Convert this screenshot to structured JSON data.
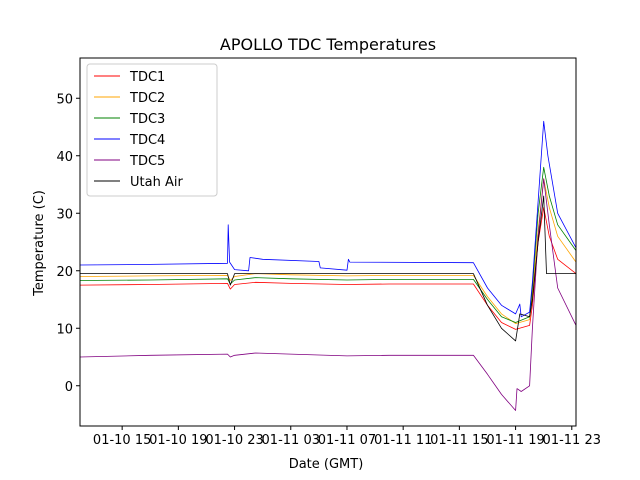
{
  "chart_data": {
    "type": "line",
    "title": "APOLLO TDC Temperatures",
    "xlabel": "Date (GMT)",
    "ylabel": "Temperature (C)",
    "x_unit": "hours since 01-10 12:00 GMT",
    "xlim": [
      0,
      35.3
    ],
    "ylim": [
      -7,
      57
    ],
    "x_ticks": [
      {
        "value": 3,
        "label": "01-10 15"
      },
      {
        "value": 7,
        "label": "01-10 19"
      },
      {
        "value": 11,
        "label": "01-10 23"
      },
      {
        "value": 15,
        "label": "01-11 03"
      },
      {
        "value": 19,
        "label": "01-11 07"
      },
      {
        "value": 23,
        "label": "01-11 11"
      },
      {
        "value": 27,
        "label": "01-11 15"
      },
      {
        "value": 31,
        "label": "01-11 19"
      },
      {
        "value": 35,
        "label": "01-11 23"
      }
    ],
    "y_ticks": [
      {
        "value": 0,
        "label": "0"
      },
      {
        "value": 10,
        "label": "10"
      },
      {
        "value": 20,
        "label": "20"
      },
      {
        "value": 30,
        "label": "30"
      },
      {
        "value": 40,
        "label": "40"
      },
      {
        "value": 50,
        "label": "50"
      }
    ],
    "grid": false,
    "legend_position": "top-left",
    "series": [
      {
        "name": "TDC1",
        "color": "#ff0000",
        "points": [
          [
            0,
            17.5
          ],
          [
            5,
            17.6
          ],
          [
            10.5,
            17.8
          ],
          [
            10.7,
            16.8
          ],
          [
            11,
            17.6
          ],
          [
            12.5,
            18
          ],
          [
            15,
            17.8
          ],
          [
            19,
            17.6
          ],
          [
            22,
            17.7
          ],
          [
            28,
            17.7
          ],
          [
            29,
            14
          ],
          [
            30,
            11
          ],
          [
            31,
            9.8
          ],
          [
            32,
            10.5
          ],
          [
            32.2,
            14
          ],
          [
            32.6,
            25
          ],
          [
            33,
            31
          ],
          [
            33.4,
            26
          ],
          [
            34,
            22
          ],
          [
            35.3,
            19.5
          ]
        ]
      },
      {
        "name": "TDC2",
        "color": "#ffa500",
        "points": [
          [
            0,
            19
          ],
          [
            5,
            19.1
          ],
          [
            10.5,
            19.2
          ],
          [
            10.7,
            18.3
          ],
          [
            11,
            19
          ],
          [
            12.5,
            19.5
          ],
          [
            15,
            19.3
          ],
          [
            19,
            19.1
          ],
          [
            22,
            19.2
          ],
          [
            28,
            19.2
          ],
          [
            29,
            15.5
          ],
          [
            30,
            12.5
          ],
          [
            31,
            10.8
          ],
          [
            32,
            11.5
          ],
          [
            32.2,
            16
          ],
          [
            32.6,
            27
          ],
          [
            33,
            36
          ],
          [
            33.4,
            31
          ],
          [
            34,
            26
          ],
          [
            35.3,
            21.5
          ]
        ]
      },
      {
        "name": "TDC3",
        "color": "#008000",
        "points": [
          [
            0,
            18.3
          ],
          [
            5,
            18.4
          ],
          [
            10.5,
            18.6
          ],
          [
            10.7,
            17.7
          ],
          [
            11,
            18.4
          ],
          [
            12.5,
            18.8
          ],
          [
            15,
            18.6
          ],
          [
            19,
            18.4
          ],
          [
            22,
            18.5
          ],
          [
            28,
            18.5
          ],
          [
            29,
            15
          ],
          [
            30,
            12
          ],
          [
            31,
            11
          ],
          [
            32,
            12
          ],
          [
            32.2,
            17
          ],
          [
            32.6,
            30
          ],
          [
            33,
            38
          ],
          [
            33.4,
            33
          ],
          [
            34,
            28
          ],
          [
            35.3,
            23.5
          ]
        ]
      },
      {
        "name": "TDC4",
        "color": "#0000ff",
        "points": [
          [
            0,
            21
          ],
          [
            5,
            21.1
          ],
          [
            10.5,
            21.3
          ],
          [
            10.55,
            28
          ],
          [
            10.65,
            21.5
          ],
          [
            11,
            20.2
          ],
          [
            12,
            20
          ],
          [
            12.1,
            22.3
          ],
          [
            13,
            22
          ],
          [
            17,
            21.6
          ],
          [
            17.1,
            20.5
          ],
          [
            19,
            20.1
          ],
          [
            19.1,
            22
          ],
          [
            19.2,
            21.5
          ],
          [
            28,
            21.4
          ],
          [
            29,
            17
          ],
          [
            30,
            14
          ],
          [
            31,
            12.5
          ],
          [
            31.3,
            14.2
          ],
          [
            31.4,
            12
          ],
          [
            32,
            12.8
          ],
          [
            32.2,
            18
          ],
          [
            32.6,
            32
          ],
          [
            33,
            46
          ],
          [
            33.3,
            40
          ],
          [
            34,
            30
          ],
          [
            35.3,
            24
          ]
        ]
      },
      {
        "name": "TDC5",
        "color": "#800080",
        "points": [
          [
            0,
            5
          ],
          [
            5,
            5.3
          ],
          [
            10.5,
            5.5
          ],
          [
            10.7,
            5.0
          ],
          [
            11,
            5.3
          ],
          [
            12.5,
            5.7
          ],
          [
            15,
            5.5
          ],
          [
            19,
            5.2
          ],
          [
            22,
            5.3
          ],
          [
            28,
            5.3
          ],
          [
            29,
            2
          ],
          [
            30,
            -1.5
          ],
          [
            31,
            -4.3
          ],
          [
            31.1,
            -0.5
          ],
          [
            31.4,
            -1
          ],
          [
            32,
            0
          ],
          [
            32.2,
            10
          ],
          [
            32.6,
            26
          ],
          [
            33,
            36
          ],
          [
            33.4,
            28
          ],
          [
            34,
            17
          ],
          [
            35.3,
            10.5
          ]
        ]
      },
      {
        "name": "Utah Air",
        "color": "#000000",
        "points": [
          [
            0,
            19.5
          ],
          [
            10.5,
            19.5
          ],
          [
            10.7,
            17.5
          ],
          [
            11,
            19.5
          ],
          [
            28,
            19.5
          ],
          [
            29,
            14
          ],
          [
            30,
            10
          ],
          [
            31,
            7.8
          ],
          [
            31.3,
            12.5
          ],
          [
            32,
            12
          ],
          [
            32.2,
            15
          ],
          [
            32.6,
            25
          ],
          [
            33,
            33
          ],
          [
            33.2,
            19.5
          ],
          [
            35.3,
            19.5
          ]
        ]
      }
    ]
  }
}
